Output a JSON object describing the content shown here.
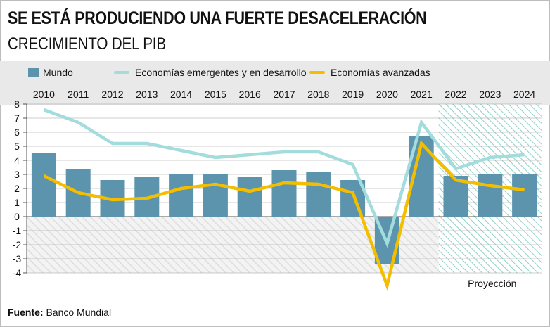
{
  "title": "SE ESTÁ PRODUCIENDO UNA FUERTE DESACELERACIÓN",
  "subtitle": "CRECIMIENTO DEL PIB",
  "source_label": "Fuente:",
  "source_text": "Banco Mundial",
  "projection_label": "Proyección",
  "colors": {
    "world": "#5c93ad",
    "emerging": "#a3dcdc",
    "advanced": "#f4be00",
    "projection_hatch": "#8fd1c8"
  },
  "chart_data": {
    "type": "bar+line",
    "title": "CRECIMIENTO DEL PIB",
    "categories": [
      "2010",
      "2011",
      "2012",
      "2013",
      "2014",
      "2015",
      "2016",
      "2017",
      "2018",
      "2019",
      "2020",
      "2021",
      "2022",
      "2023",
      "2024"
    ],
    "ylim": [
      -4,
      8
    ],
    "yticks": [
      8,
      7,
      6,
      5,
      4,
      3,
      2,
      1,
      0,
      -1,
      -2,
      -3,
      -4
    ],
    "projection_from": "2022",
    "series": [
      {
        "name": "Mundo",
        "kind": "bar",
        "values": [
          4.5,
          3.4,
          2.6,
          2.8,
          3.0,
          3.0,
          2.8,
          3.3,
          3.2,
          2.6,
          -3.4,
          5.7,
          2.9,
          3.0,
          3.0
        ]
      },
      {
        "name": "Economías emergentes y en desarrollo",
        "kind": "line",
        "values": [
          7.6,
          6.7,
          5.2,
          5.2,
          4.7,
          4.2,
          4.4,
          4.6,
          4.6,
          3.7,
          -1.9,
          6.7,
          3.4,
          4.2,
          4.4
        ]
      },
      {
        "name": "Economías avanzadas",
        "kind": "line",
        "values": [
          2.9,
          1.7,
          1.2,
          1.3,
          2.0,
          2.3,
          1.8,
          2.4,
          2.3,
          1.7,
          -4.9,
          5.2,
          2.6,
          2.2,
          1.9
        ]
      }
    ]
  }
}
